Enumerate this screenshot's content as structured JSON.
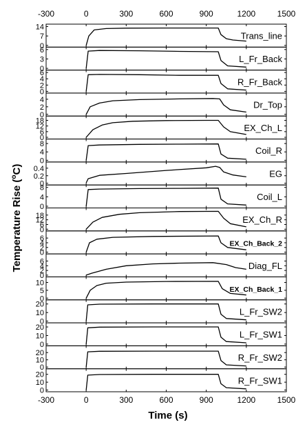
{
  "chart_data": {
    "type": "line",
    "xlabel": "Time (s)",
    "ylabel": "Temperature Rise (",
    "ylabel_unit_sup": "o",
    "ylabel_unit_tail": "C)",
    "xlim": [
      -300,
      1500
    ],
    "xticks": [
      -300,
      0,
      300,
      600,
      900,
      1200,
      1500
    ],
    "panels": [
      {
        "name": "Trans_line",
        "ylim": [
          0,
          14
        ],
        "yticks": [
          0,
          7,
          14
        ],
        "points": [
          [
            0,
            0
          ],
          [
            20,
            7
          ],
          [
            60,
            11.5
          ],
          [
            150,
            12.5
          ],
          [
            300,
            12.8
          ],
          [
            600,
            12.9
          ],
          [
            990,
            12.9
          ],
          [
            1010,
            8
          ],
          [
            1050,
            5
          ],
          [
            1100,
            4
          ],
          [
            1200,
            3.2
          ]
        ]
      },
      {
        "name": "L_Fr_Back",
        "ylim": [
          0,
          6
        ],
        "yticks": [
          0,
          3,
          6
        ],
        "points": [
          [
            0,
            0
          ],
          [
            15,
            5.5
          ],
          [
            100,
            5.7
          ],
          [
            400,
            5.6
          ],
          [
            700,
            5.4
          ],
          [
            990,
            5.3
          ],
          [
            1010,
            2.5
          ],
          [
            1060,
            0.8
          ],
          [
            1200,
            0.4
          ]
        ]
      },
      {
        "name": "R_Fr_Back",
        "ylim": [
          0,
          6
        ],
        "yticks": [
          0,
          2,
          4,
          6
        ],
        "points": [
          [
            0,
            0
          ],
          [
            15,
            5.3
          ],
          [
            100,
            5.4
          ],
          [
            400,
            5.3
          ],
          [
            700,
            5.1
          ],
          [
            990,
            5.1
          ],
          [
            1010,
            2.5
          ],
          [
            1060,
            0.8
          ],
          [
            1200,
            0.4
          ]
        ]
      },
      {
        "name": "Dr_Top",
        "ylim": [
          0,
          5
        ],
        "yticks": [
          0,
          2,
          4
        ],
        "points": [
          [
            0,
            0
          ],
          [
            30,
            2
          ],
          [
            100,
            3
          ],
          [
            200,
            3.6
          ],
          [
            400,
            3.9
          ],
          [
            700,
            4.1
          ],
          [
            950,
            4.2
          ],
          [
            1000,
            4.1
          ],
          [
            1030,
            2.5
          ],
          [
            1080,
            1.2
          ],
          [
            1200,
            0.6
          ]
        ]
      },
      {
        "name": "EX_Ch_L",
        "ylim": [
          0,
          20
        ],
        "yticks": [
          0,
          6,
          12,
          18
        ],
        "points": [
          [
            0,
            0
          ],
          [
            50,
            8
          ],
          [
            120,
            13
          ],
          [
            200,
            15.5
          ],
          [
            350,
            17
          ],
          [
            600,
            17.8
          ],
          [
            900,
            18
          ],
          [
            990,
            18
          ],
          [
            1030,
            11
          ],
          [
            1080,
            6
          ],
          [
            1200,
            3
          ]
        ]
      },
      {
        "name": "Coil_R",
        "ylim": [
          0,
          9
        ],
        "yticks": [
          0,
          4,
          8
        ],
        "points": [
          [
            0,
            0
          ],
          [
            15,
            7
          ],
          [
            100,
            7.3
          ],
          [
            400,
            7.6
          ],
          [
            700,
            7.7
          ],
          [
            990,
            7.8
          ],
          [
            1010,
            3
          ],
          [
            1060,
            1
          ],
          [
            1200,
            0.5
          ]
        ]
      },
      {
        "name": "EG",
        "ylim": [
          0,
          0.5
        ],
        "yticks": [
          0,
          0.2,
          0.4
        ],
        "points": [
          [
            0,
            0.01
          ],
          [
            15,
            0.12
          ],
          [
            100,
            0.21
          ],
          [
            300,
            0.26
          ],
          [
            600,
            0.34
          ],
          [
            900,
            0.41
          ],
          [
            970,
            0.45
          ],
          [
            1000,
            0.42
          ],
          [
            1030,
            0.3
          ],
          [
            1100,
            0.22
          ],
          [
            1200,
            0.17
          ]
        ]
      },
      {
        "name": "Coil_L",
        "ylim": [
          0,
          8
        ],
        "yticks": [
          0,
          4,
          8
        ],
        "points": [
          [
            0,
            0
          ],
          [
            15,
            7.1
          ],
          [
            100,
            7.3
          ],
          [
            400,
            7.5
          ],
          [
            700,
            7.6
          ],
          [
            990,
            7.7
          ],
          [
            1010,
            3
          ],
          [
            1060,
            1
          ],
          [
            1200,
            0.5
          ]
        ]
      },
      {
        "name": "EX_Ch_R",
        "ylim": [
          0,
          24
        ],
        "yticks": [
          0,
          6,
          12,
          18
        ],
        "points": [
          [
            0,
            0
          ],
          [
            50,
            9
          ],
          [
            120,
            15
          ],
          [
            250,
            19
          ],
          [
            400,
            21
          ],
          [
            700,
            22.5
          ],
          [
            990,
            22.8
          ],
          [
            1030,
            14
          ],
          [
            1080,
            7
          ],
          [
            1200,
            3
          ]
        ]
      },
      {
        "name": "EX_Ch_Back_2",
        "ylim": [
          0,
          8
        ],
        "yticks": [
          0,
          2,
          4,
          6
        ],
        "points": [
          [
            0,
            0
          ],
          [
            25,
            4
          ],
          [
            80,
            5.5
          ],
          [
            200,
            6.3
          ],
          [
            500,
            6.7
          ],
          [
            990,
            6.9
          ],
          [
            1010,
            4
          ],
          [
            1060,
            2
          ],
          [
            1200,
            1
          ]
        ]
      },
      {
        "name": "Diag_FL",
        "ylim": [
          0,
          8
        ],
        "yticks": [
          0,
          2,
          4,
          6
        ],
        "points": [
          [
            0,
            0
          ],
          [
            40,
            0.8
          ],
          [
            150,
            2.5
          ],
          [
            300,
            4
          ],
          [
            500,
            4.8
          ],
          [
            700,
            5.1
          ],
          [
            950,
            5.3
          ],
          [
            1050,
            4.5
          ],
          [
            1120,
            3.2
          ],
          [
            1200,
            2.5
          ]
        ]
      },
      {
        "name": "EX_Ch_Back_1",
        "ylim": [
          0,
          12
        ],
        "yticks": [
          0,
          5,
          10
        ],
        "points": [
          [
            0,
            0
          ],
          [
            30,
            5
          ],
          [
            80,
            8
          ],
          [
            150,
            9.5
          ],
          [
            300,
            10.2
          ],
          [
            600,
            10.6
          ],
          [
            990,
            10.7
          ],
          [
            1020,
            6
          ],
          [
            1080,
            3
          ],
          [
            1200,
            2
          ]
        ]
      },
      {
        "name": "L_Fr_SW2",
        "ylim": [
          0,
          22
        ],
        "yticks": [
          0,
          10,
          20
        ],
        "points": [
          [
            0,
            0
          ],
          [
            12,
            19
          ],
          [
            100,
            19.8
          ],
          [
            500,
            20
          ],
          [
            990,
            20
          ],
          [
            1010,
            8
          ],
          [
            1050,
            3
          ],
          [
            1200,
            1.5
          ]
        ]
      },
      {
        "name": "L_Fr_SW1",
        "ylim": [
          0,
          22
        ],
        "yticks": [
          0,
          10,
          20
        ],
        "points": [
          [
            0,
            0
          ],
          [
            12,
            19
          ],
          [
            100,
            19.8
          ],
          [
            500,
            20
          ],
          [
            990,
            20
          ],
          [
            1010,
            8
          ],
          [
            1050,
            3
          ],
          [
            1200,
            1.5
          ]
        ]
      },
      {
        "name": "R_Fr_SW2",
        "ylim": [
          0,
          26
        ],
        "yticks": [
          0,
          10,
          20
        ],
        "points": [
          [
            0,
            0
          ],
          [
            12,
            21
          ],
          [
            100,
            21.8
          ],
          [
            500,
            22
          ],
          [
            990,
            22
          ],
          [
            1010,
            9
          ],
          [
            1050,
            3
          ],
          [
            1200,
            1.5
          ]
        ]
      },
      {
        "name": "R_Fr_SW1",
        "ylim": [
          0,
          24
        ],
        "yticks": [
          0,
          10,
          20
        ],
        "points": [
          [
            0,
            0
          ],
          [
            12,
            19
          ],
          [
            100,
            19.8
          ],
          [
            500,
            20
          ],
          [
            990,
            20
          ],
          [
            1010,
            8
          ],
          [
            1050,
            3
          ],
          [
            1200,
            1.5
          ]
        ]
      }
    ]
  }
}
